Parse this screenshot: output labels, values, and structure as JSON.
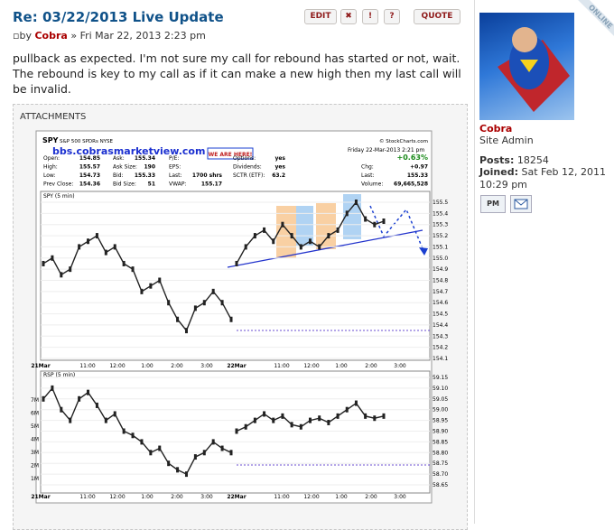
{
  "post": {
    "title": "Re: 03/22/2013 Live Update",
    "by_label": "by",
    "author": "Cobra",
    "separator": "»",
    "date": "Fri Mar 22, 2013 2:23 pm",
    "buttons": {
      "edit": "EDIT",
      "delete": "✖",
      "report": "!",
      "info": "?",
      "quote": "QUOTE"
    },
    "body": "pullback as expected.  I'm not sure my call for rebound has started or not, wait.  The rebound is key to my call as if it can make a new high then my last call will be invalid.",
    "attachments_label": "ATTACHMENTS"
  },
  "attachment": {
    "symbol": "SPY",
    "symbol_desc": "S&P 500 SPDRs NYSE",
    "site": "bbs.cobrasmarketview.com",
    "badge": "WE ARE HERE!",
    "copyright": "© StockCharts.com",
    "timestamp": "Friday  22-Mar-2013  2:21 pm",
    "stats": [
      [
        {
          "label": "Open:",
          "value": "154.85"
        },
        {
          "label": "High:",
          "value": "155.57"
        },
        {
          "label": "Low:",
          "value": "154.73"
        },
        {
          "label": "Prev Close:",
          "value": "154.36"
        }
      ],
      [
        {
          "label": "Ask:",
          "value": "155.34"
        },
        {
          "label": "Ask Size:",
          "value": "190"
        },
        {
          "label": "Bid:",
          "value": "155.33"
        },
        {
          "label": "Bid Size:",
          "value": "51"
        }
      ],
      [
        {
          "label": "P/E:"
        },
        {
          "label": "EPS:"
        },
        {
          "label": "Last:",
          "value": "1700 shrs"
        },
        {
          "label": "VWAP:",
          "value": "155.17"
        }
      ],
      [
        {
          "label": "Options:",
          "value": "yes"
        },
        {
          "label": "Dividends:",
          "value": "yes"
        },
        {
          "label": "SCTR (ETF):",
          "value": "63.2"
        }
      ],
      [
        {
          "value": "+0.63%"
        },
        {
          "label": "Chg:",
          "value": "+0.97"
        },
        {
          "label": "Last:",
          "value": "155.33"
        },
        {
          "label": "Volume:",
          "value": "69,665,528"
        }
      ]
    ],
    "price_panel": {
      "label": "SPY (5 min)",
      "ylim": [
        154.1,
        155.5
      ],
      "yticks": [
        155.5,
        155.4,
        155.3,
        155.2,
        155.1,
        {
          "value": 155,
          "label": "155.0"
        },
        154.9,
        154.8,
        154.7,
        154.6,
        154.5,
        154.4,
        154.3,
        154.2,
        154.1
      ],
      "sessions": [
        [
          154.95,
          155.0,
          154.85,
          154.9,
          155.1,
          155.15,
          155.2,
          155.05,
          155.1,
          154.95,
          154.9,
          154.7,
          154.75,
          154.8,
          154.6,
          154.45,
          154.35,
          154.55,
          154.6,
          154.7,
          154.6,
          154.45
        ],
        [
          154.95,
          155.1,
          155.2,
          155.25,
          155.15,
          155.3,
          155.2,
          155.1,
          155.15,
          155.1,
          155.2,
          155.25,
          155.4,
          155.5,
          155.35,
          155.3,
          155.33
        ]
      ]
    },
    "lower_panel": {
      "label": "RSP (5 min)",
      "ylim": [
        58.65,
        59.15
      ],
      "yticks": [
        59.15,
        {
          "value": 59.1,
          "label": "59.10"
        },
        59.05,
        {
          "value": 59,
          "label": "59.00"
        },
        58.95,
        {
          "value": 58.9,
          "label": "58.90"
        },
        58.85,
        {
          "value": 58.8,
          "label": "58.80"
        },
        58.75,
        {
          "value": 58.7,
          "label": "58.70"
        },
        58.65
      ],
      "volume_ticks": [
        "7M",
        "6M",
        "5M",
        "4M",
        "3M",
        "2M",
        "1M"
      ],
      "sessions": [
        [
          59.05,
          59.1,
          59.0,
          58.95,
          59.05,
          59.08,
          59.02,
          58.95,
          58.98,
          58.9,
          58.88,
          58.85,
          58.8,
          58.82,
          58.75,
          58.72,
          58.7,
          58.78,
          58.8,
          58.85,
          58.82,
          58.8
        ],
        [
          58.9,
          58.92,
          58.95,
          58.98,
          58.95,
          58.97,
          58.93,
          58.92,
          58.95,
          58.96,
          58.94,
          58.97,
          59.0,
          59.03,
          58.97,
          58.96,
          58.97
        ]
      ]
    },
    "time_labels": [
      "21Mar",
      "11:00",
      "12:00",
      "1:00",
      "2:00",
      "3:00",
      "22Mar",
      "11:00",
      "12:00",
      "1:00",
      "2:00",
      "3:00"
    ]
  },
  "profile": {
    "online": "ONLINE",
    "name": "Cobra",
    "rank": "Site Admin",
    "posts_label": "Posts:",
    "posts": "18254",
    "joined_label": "Joined:",
    "joined": "Sat Feb 12, 2011 10:29 pm",
    "pm": "PM"
  }
}
